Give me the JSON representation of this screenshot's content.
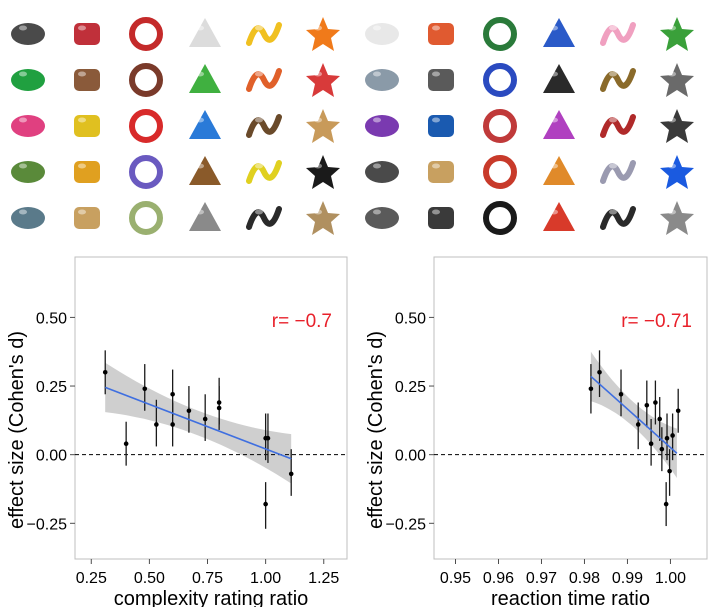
{
  "thumbnail_grid": {
    "rows": 5,
    "cols": 12,
    "items": [
      {
        "icon": "ring-object-icon",
        "color": "#4a4a4a"
      },
      {
        "icon": "red-stick-icon",
        "color": "#c0303a"
      },
      {
        "icon": "red-blob-icon",
        "color": "#c42a2a"
      },
      {
        "icon": "pipe-fitting-icon",
        "color": "#dcdcdc"
      },
      {
        "icon": "yellow-worm-icon",
        "color": "#f0c020"
      },
      {
        "icon": "orange-s-icon",
        "color": "#f07a1a"
      },
      {
        "icon": "white-pipe-icon",
        "color": "#e8e8e8"
      },
      {
        "icon": "colorful-knot-icon",
        "color": "#e05a30"
      },
      {
        "icon": "grabber-tool-icon",
        "color": "#2a7a3a"
      },
      {
        "icon": "blue-bulb-icon",
        "color": "#2a5ac8"
      },
      {
        "icon": "pink-glove-icon",
        "color": "#f0a0c0"
      },
      {
        "icon": "green-bottle-icon",
        "color": "#3aa03a"
      },
      {
        "icon": "figure-eight-icon",
        "color": "#20a040"
      },
      {
        "icon": "wrench-icon",
        "color": "#8a5a3a"
      },
      {
        "icon": "scissors-icon",
        "color": "#7a3a2a"
      },
      {
        "icon": "green-mushroom-icon",
        "color": "#40b040"
      },
      {
        "icon": "spiky-gear-icon",
        "color": "#e0602a"
      },
      {
        "icon": "red-cone-icon",
        "color": "#d83a3a"
      },
      {
        "icon": "metal-rod-icon",
        "color": "#8a9aa8"
      },
      {
        "icon": "gray-cylinder-icon",
        "color": "#5a5a5a"
      },
      {
        "icon": "molecule-icon",
        "color": "#2a4ac0"
      },
      {
        "icon": "black-arc-icon",
        "color": "#2a2a2a"
      },
      {
        "icon": "spiky-ball-icon",
        "color": "#8a6a2a"
      },
      {
        "icon": "brush-icon",
        "color": "#6a6a6a"
      },
      {
        "icon": "pink-pen-icon",
        "color": "#e04080"
      },
      {
        "icon": "yellow-peeler-icon",
        "color": "#e0c020"
      },
      {
        "icon": "red-ring-icon",
        "color": "#d82a2a"
      },
      {
        "icon": "blue-spinner-icon",
        "color": "#2a7ad8"
      },
      {
        "icon": "wicker-ball-icon",
        "color": "#6a4a2a"
      },
      {
        "icon": "wooden-toy-icon",
        "color": "#c89a5a"
      },
      {
        "icon": "purple-stone-icon",
        "color": "#7a3ab0"
      },
      {
        "icon": "blue-clip-icon",
        "color": "#1a5ab0"
      },
      {
        "icon": "spray-tool-icon",
        "color": "#c03a3a"
      },
      {
        "icon": "purple-spring-icon",
        "color": "#b040c0"
      },
      {
        "icon": "red-gun-icon",
        "color": "#b02a2a"
      },
      {
        "icon": "stand-icon",
        "color": "#3a3a3a"
      },
      {
        "icon": "green-knot-icon",
        "color": "#5a8a3a"
      },
      {
        "icon": "dumbbell-icon",
        "color": "#e0a020"
      },
      {
        "icon": "purple-bag-icon",
        "color": "#6a5ac0"
      },
      {
        "icon": "branch-icon",
        "color": "#8a5a2a"
      },
      {
        "icon": "yellow-lamp-icon",
        "color": "#e0d020"
      },
      {
        "icon": "black-cog-icon",
        "color": "#1a1a1a"
      },
      {
        "icon": "twisted-block-icon",
        "color": "#4a4a4a"
      },
      {
        "icon": "lace-doily-icon",
        "color": "#c8a060"
      },
      {
        "icon": "red-torch-icon",
        "color": "#c83a2a"
      },
      {
        "icon": "orange-machine-icon",
        "color": "#e08a2a"
      },
      {
        "icon": "wheel-icon",
        "color": "#9a9ab0"
      },
      {
        "icon": "blue-robot-icon",
        "color": "#1a5ae0"
      },
      {
        "icon": "toy-car-icon",
        "color": "#5a7a8a"
      },
      {
        "icon": "wood-blocks-icon",
        "color": "#c8a060"
      },
      {
        "icon": "fluffy-plant-icon",
        "color": "#9ab070"
      },
      {
        "icon": "metal-basket-icon",
        "color": "#8a8a8a"
      },
      {
        "icon": "black-device-icon",
        "color": "#2a2a2a"
      },
      {
        "icon": "tool-set-icon",
        "color": "#b09060"
      },
      {
        "icon": "wire-frame-icon",
        "color": "#5a5a5a"
      },
      {
        "icon": "drone-icon",
        "color": "#3a3a3a"
      },
      {
        "icon": "black-tire-icon",
        "color": "#1a1a1a"
      },
      {
        "icon": "red-bike-icon",
        "color": "#d83a2a"
      },
      {
        "icon": "circuit-board-icon",
        "color": "#2a2a2a"
      },
      {
        "icon": "metal-case-icon",
        "color": "#8a8a8a"
      }
    ]
  },
  "chart_data": [
    {
      "type": "scatter",
      "xlabel": "complexity rating ratio",
      "ylabel": "effect size (Cohen's d)",
      "xlim": [
        0.18,
        1.35
      ],
      "ylim": [
        -0.38,
        0.72
      ],
      "xticks": [
        0.25,
        0.5,
        0.75,
        1.0,
        1.25
      ],
      "xtick_labels": [
        "0.25",
        "0.50",
        "0.75",
        "1.00",
        "1.25"
      ],
      "yticks": [
        -0.25,
        0.0,
        0.25,
        0.5
      ],
      "ytick_labels": [
        "−0.25",
        "0.00",
        "0.25",
        "0.50"
      ],
      "annotation": "r= −0.7",
      "annotation_color": "#e8202a",
      "reference_line_y": 0,
      "regression": {
        "x": [
          0.31,
          1.11
        ],
        "y": [
          0.245,
          -0.015
        ]
      },
      "points": [
        {
          "x": 0.31,
          "y": 0.3,
          "lo": 0.22,
          "hi": 0.38
        },
        {
          "x": 0.4,
          "y": 0.04,
          "lo": -0.04,
          "hi": 0.12
        },
        {
          "x": 0.48,
          "y": 0.24,
          "lo": 0.16,
          "hi": 0.33
        },
        {
          "x": 0.53,
          "y": 0.11,
          "lo": 0.03,
          "hi": 0.2
        },
        {
          "x": 0.6,
          "y": 0.22,
          "lo": 0.14,
          "hi": 0.31
        },
        {
          "x": 0.6,
          "y": 0.11,
          "lo": 0.03,
          "hi": 0.19
        },
        {
          "x": 0.67,
          "y": 0.16,
          "lo": 0.08,
          "hi": 0.25
        },
        {
          "x": 0.74,
          "y": 0.13,
          "lo": 0.05,
          "hi": 0.22
        },
        {
          "x": 0.8,
          "y": 0.19,
          "lo": 0.11,
          "hi": 0.28
        },
        {
          "x": 0.8,
          "y": 0.17,
          "lo": 0.09,
          "hi": 0.25
        },
        {
          "x": 1.0,
          "y": 0.06,
          "lo": -0.02,
          "hi": 0.15
        },
        {
          "x": 1.01,
          "y": 0.06,
          "lo": -0.03,
          "hi": 0.15
        },
        {
          "x": 1.0,
          "y": -0.18,
          "lo": -0.27,
          "hi": -0.1
        },
        {
          "x": 1.11,
          "y": -0.07,
          "lo": -0.15,
          "hi": 0.02
        }
      ]
    },
    {
      "type": "scatter",
      "xlabel": "reaction time ratio",
      "ylabel": "effect size (Cohen's d)",
      "xlim": [
        0.945,
        1.0085
      ],
      "ylim": [
        -0.38,
        0.72
      ],
      "xticks": [
        0.95,
        0.96,
        0.97,
        0.98,
        0.99,
        1.0
      ],
      "xtick_labels": [
        "0.95",
        "0.96",
        "0.97",
        "0.98",
        "0.99",
        "1.00"
      ],
      "yticks": [
        -0.25,
        0.0,
        0.25,
        0.5
      ],
      "ytick_labels": [
        "−0.25",
        "0.00",
        "0.25",
        "0.50"
      ],
      "annotation": "r= −0.71",
      "annotation_color": "#e8202a",
      "reference_line_y": 0,
      "regression": {
        "x": [
          0.9815,
          1.0015
        ],
        "y": [
          0.285,
          0.005
        ]
      },
      "points": [
        {
          "x": 0.9815,
          "y": 0.24,
          "lo": 0.15,
          "hi": 0.33
        },
        {
          "x": 0.9835,
          "y": 0.3,
          "lo": 0.21,
          "hi": 0.38
        },
        {
          "x": 0.9885,
          "y": 0.22,
          "lo": 0.14,
          "hi": 0.31
        },
        {
          "x": 0.9925,
          "y": 0.11,
          "lo": 0.02,
          "hi": 0.19
        },
        {
          "x": 0.9945,
          "y": 0.18,
          "lo": 0.1,
          "hi": 0.27
        },
        {
          "x": 0.9955,
          "y": 0.04,
          "lo": -0.04,
          "hi": 0.13
        },
        {
          "x": 0.9965,
          "y": 0.19,
          "lo": 0.11,
          "hi": 0.27
        },
        {
          "x": 0.9975,
          "y": 0.13,
          "lo": 0.05,
          "hi": 0.21
        },
        {
          "x": 0.998,
          "y": 0.02,
          "lo": -0.06,
          "hi": 0.1
        },
        {
          "x": 0.9992,
          "y": 0.06,
          "lo": -0.02,
          "hi": 0.15
        },
        {
          "x": 0.999,
          "y": -0.18,
          "lo": -0.26,
          "hi": -0.1
        },
        {
          "x": 0.9998,
          "y": -0.06,
          "lo": -0.15,
          "hi": 0.02
        },
        {
          "x": 1.0005,
          "y": 0.07,
          "lo": -0.02,
          "hi": 0.15
        },
        {
          "x": 1.0018,
          "y": 0.16,
          "lo": 0.08,
          "hi": 0.24
        }
      ]
    }
  ]
}
